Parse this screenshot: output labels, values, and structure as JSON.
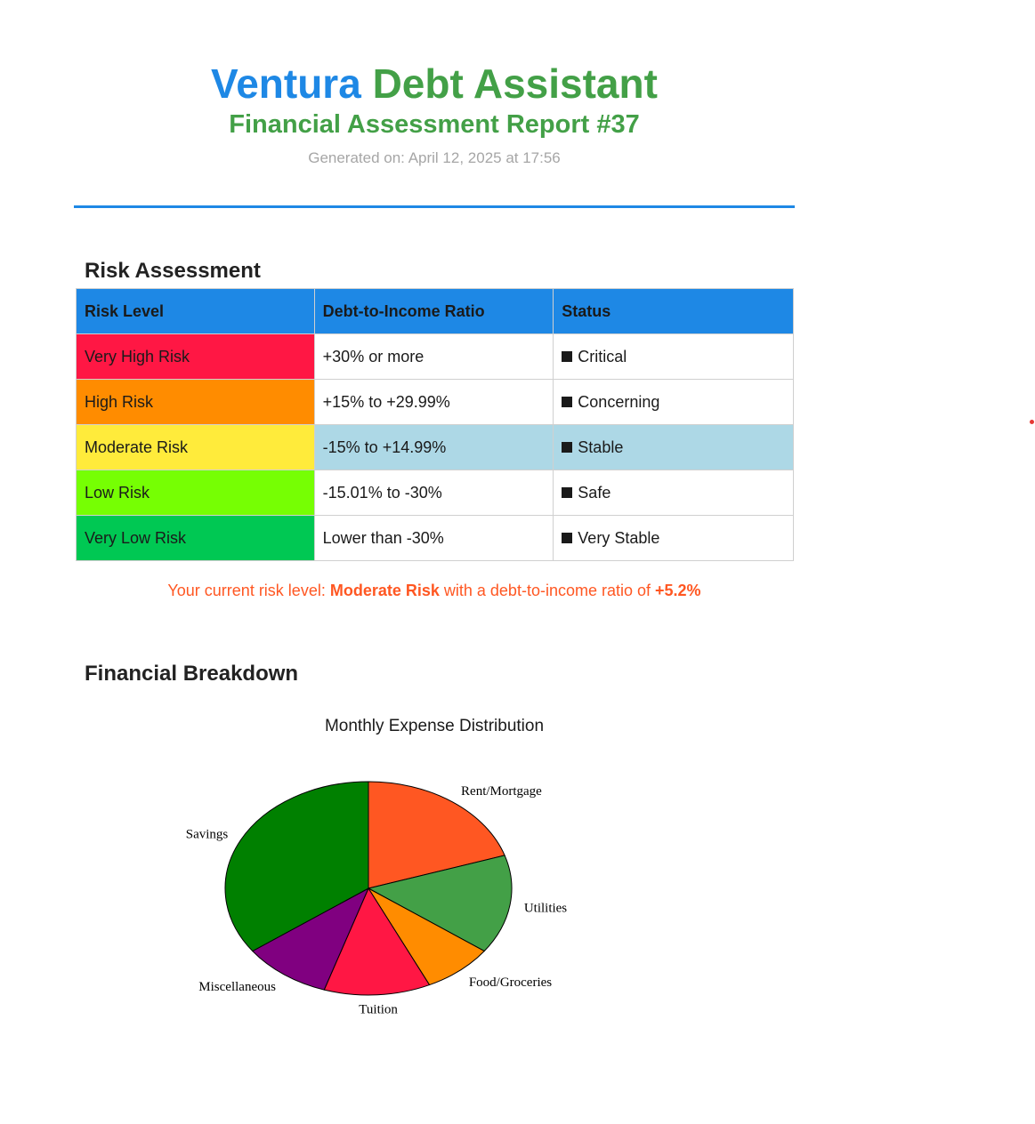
{
  "header": {
    "title_part1": "Ventura",
    "title_part2": "Debt Assistant",
    "report_title": "Financial Assessment Report #37",
    "generated": "Generated on: April 12, 2025 at 17:56"
  },
  "risk_section": {
    "title": "Risk Assessment",
    "columns": [
      "Risk Level",
      "Debt-to-Income Ratio",
      "Status"
    ],
    "rows": [
      {
        "level": "Very High Risk",
        "ratio": "+30% or more",
        "status": "Critical",
        "color": "#ff1744",
        "highlight": false
      },
      {
        "level": "High Risk",
        "ratio": "+15% to +29.99%",
        "status": "Concerning",
        "color": "#ff8c00",
        "highlight": false
      },
      {
        "level": "Moderate Risk",
        "ratio": "-15% to +14.99%",
        "status": "Stable",
        "color": "#ffeb3b",
        "highlight": true
      },
      {
        "level": "Low Risk",
        "ratio": "-15.01% to -30%",
        "status": "Safe",
        "color": "#76ff03",
        "highlight": false
      },
      {
        "level": "Very Low Risk",
        "ratio": "Lower than -30%",
        "status": "Very Stable",
        "color": "#00c853",
        "highlight": false
      }
    ],
    "highlight_color": "#add8e6",
    "current_prefix": "Your current risk level: ",
    "current_level": "Moderate Risk",
    "current_middle": " with a debt-to-income ratio of ",
    "current_ratio": "+5.2%"
  },
  "breakdown_section": {
    "title": "Financial Breakdown"
  },
  "chart_data": {
    "type": "pie",
    "title": "Monthly Expense Distribution",
    "categories": [
      "Rent/Mortgage",
      "Utilities",
      "Food/Groceries",
      "Tuition",
      "Miscellaneous",
      "Savings"
    ],
    "values": [
      20,
      15,
      8,
      12,
      10,
      35
    ],
    "colors": [
      "#ff5722",
      "#43a047",
      "#ff8c00",
      "#ff1744",
      "#800080",
      "#008000"
    ]
  }
}
